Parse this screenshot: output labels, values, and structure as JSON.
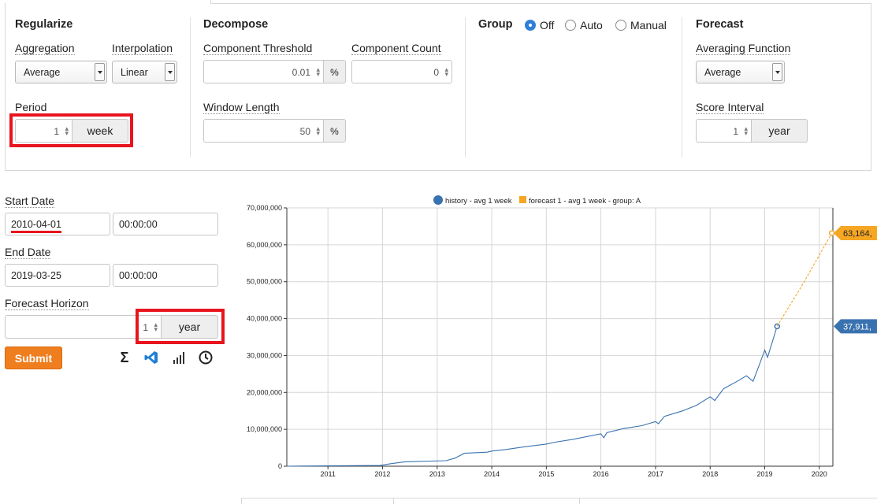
{
  "regularize": {
    "heading": "Regularize",
    "aggregation_label": "Aggregation",
    "aggregation_value": "Average",
    "interpolation_label": "Interpolation",
    "interpolation_value": "Linear",
    "period_label": "Period",
    "period_value": "1",
    "period_unit": "week"
  },
  "decompose": {
    "heading": "Decompose",
    "threshold_label": "Component Threshold",
    "threshold_value": "0.01",
    "threshold_unit": "%",
    "count_label": "Component Count",
    "count_value": "0",
    "window_label": "Window Length",
    "window_value": "50",
    "window_unit": "%"
  },
  "group": {
    "heading": "Group",
    "options": [
      "Off",
      "Auto",
      "Manual"
    ],
    "selected": "Off"
  },
  "forecast": {
    "heading": "Forecast",
    "averaging_label": "Averaging Function",
    "averaging_value": "Average",
    "score_label": "Score Interval",
    "score_value": "1",
    "score_unit": "year"
  },
  "dates": {
    "start_label": "Start Date",
    "start_date": "2010-04-01",
    "start_time": "00:00:00",
    "end_label": "End Date",
    "end_date": "2019-03-25",
    "end_time": "00:00:00",
    "horizon_label": "Forecast Horizon",
    "horizon_value": "1",
    "horizon_unit": "year"
  },
  "submit_label": "Submit",
  "tools": {
    "sigma": "Σ",
    "bars": "▐",
    "icons": [
      "sigma-icon",
      "vscode-icon",
      "bar-chart-icon",
      "clock-icon"
    ]
  },
  "colors": {
    "history": "#3a72b0",
    "forecast": "#f5a623",
    "submit": "#ef7e1f",
    "highlight": "#e8141e"
  },
  "chart_data": {
    "type": "line",
    "legend_placement": "top-center",
    "grid": true,
    "ylim": [
      0,
      70000000
    ],
    "y_ticks": [
      "0",
      "10,000,000",
      "20,000,000",
      "30,000,000",
      "40,000,000",
      "50,000,000",
      "60,000,000",
      "70,000,000"
    ],
    "y_tick_values": [
      0,
      10000000,
      20000000,
      30000000,
      40000000,
      50000000,
      60000000,
      70000000
    ],
    "x_range": [
      "2010-04-01",
      "2020-04-01"
    ],
    "x_ticks": [
      "2011",
      "2012",
      "2013",
      "2014",
      "2015",
      "2016",
      "2017",
      "2018",
      "2019",
      "2020"
    ],
    "series": [
      {
        "name": "history - avg 1 week",
        "color": "#3a72b0",
        "x": [
          "2010-04-01",
          "2011-01-01",
          "2011-12-15",
          "2012-03-01",
          "2012-06-01",
          "2013-03-01",
          "2013-05-01",
          "2013-07-01",
          "2013-12-01",
          "2014-01-01",
          "2014-04-01",
          "2014-08-01",
          "2015-01-01",
          "2015-03-01",
          "2015-07-01",
          "2016-01-01",
          "2016-01-20",
          "2016-02-10",
          "2016-06-01",
          "2016-10-01",
          "2017-01-01",
          "2017-01-20",
          "2017-03-01",
          "2017-07-01",
          "2017-10-01",
          "2018-01-01",
          "2018-02-01",
          "2018-04-01",
          "2018-07-01",
          "2018-09-01",
          "2018-10-15",
          "2018-12-01",
          "2019-01-01",
          "2019-01-20",
          "2019-03-25"
        ],
        "values": [
          0,
          100000,
          200000,
          700000,
          1200000,
          1500000,
          2200000,
          3500000,
          3800000,
          4100000,
          4500000,
          5200000,
          6000000,
          6500000,
          7300000,
          8800000,
          7700000,
          9100000,
          10200000,
          11000000,
          12100000,
          11500000,
          13500000,
          15000000,
          16500000,
          18800000,
          17800000,
          21000000,
          23000000,
          24500000,
          23000000,
          28000000,
          31500000,
          29500000,
          37911000
        ]
      },
      {
        "name": "forecast 1 - avg 1 week - group: A",
        "color": "#f5a623",
        "x": [
          "2019-03-25",
          "2019-06-01",
          "2019-09-01",
          "2019-12-01",
          "2020-03-25"
        ],
        "values": [
          37911000,
          42500000,
          48500000,
          55000000,
          63164000
        ]
      }
    ],
    "value_labels": [
      {
        "series": "forecast 1 - avg 1 week - group: A",
        "text": "63,164,",
        "color": "#f5a623"
      },
      {
        "series": "history - avg 1 week",
        "text": "37,911,",
        "color": "#3a72b0"
      }
    ]
  }
}
